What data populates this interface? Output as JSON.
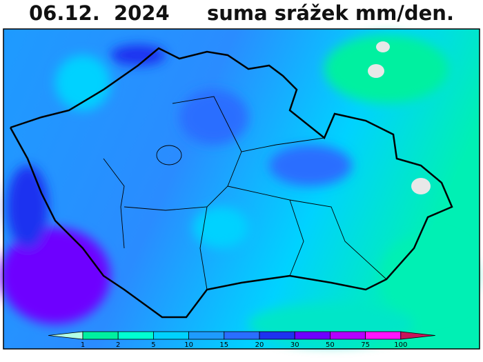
{
  "header": {
    "date": "06.12.  2024",
    "title": "suma srážek mm/den."
  },
  "legend": {
    "ticks": [
      1,
      2,
      5,
      10,
      15,
      20,
      30,
      50,
      75,
      100
    ],
    "colors": [
      "#b4ffe6",
      "#00f0a0",
      "#00ffd2",
      "#00d2ff",
      "#1e9bff",
      "#2a6eff",
      "#1e32f0",
      "#6e00ff",
      "#b400ff",
      "#ff14ff",
      "#c8145a"
    ]
  }
}
